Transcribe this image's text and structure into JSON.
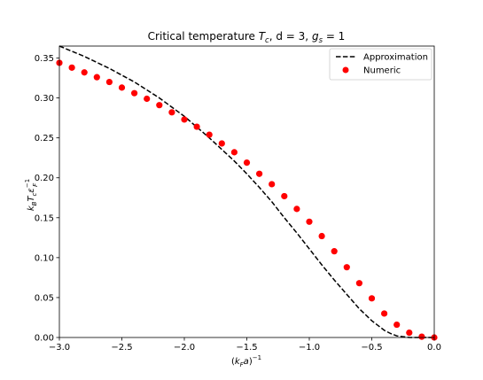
{
  "chart_data": {
    "type": "line",
    "title_main": "Critical temperature ",
    "title_var": "T",
    "title_var_sub": "c",
    "title_mid": ", d = 3, ",
    "title_var2": "g",
    "title_var2_sub": "s",
    "title_end": " = 1",
    "xlabel_open": "(",
    "xlabel_k": "k",
    "xlabel_k_sub": "F",
    "xlabel_a": "a",
    "xlabel_close": ")",
    "xlabel_exp": "−1",
    "ylabel_k": "k",
    "ylabel_k_sub": "B",
    "ylabel_T": "T",
    "ylabel_T_sub": "c",
    "ylabel_eps": "ε",
    "ylabel_eps_sub": "F",
    "ylabel_eps_exp": "−1",
    "xlim": [
      -3.0,
      0.0
    ],
    "ylim": [
      0.0,
      0.365
    ],
    "xticks": [
      -3.0,
      -2.5,
      -2.0,
      -1.5,
      -1.0,
      -0.5,
      0.0
    ],
    "xtick_labels": [
      "−3.0",
      "−2.5",
      "−2.0",
      "−1.5",
      "−1.0",
      "−0.5",
      "0.0"
    ],
    "yticks": [
      0.0,
      0.05,
      0.1,
      0.15,
      0.2,
      0.25,
      0.3,
      0.35
    ],
    "ytick_labels": [
      "0.00",
      "0.05",
      "0.10",
      "0.15",
      "0.20",
      "0.25",
      "0.30",
      "0.35"
    ],
    "legend_position": "top-right",
    "grid": false,
    "series": [
      {
        "name": "Approximation",
        "style": "dashed-line",
        "color": "#000000",
        "x": [
          -3.0,
          -2.8,
          -2.6,
          -2.4,
          -2.2,
          -2.0,
          -1.8,
          -1.6,
          -1.5,
          -1.4,
          -1.3,
          -1.2,
          -1.1,
          -1.0,
          -0.9,
          -0.8,
          -0.7,
          -0.6,
          -0.5,
          -0.4,
          -0.35,
          -0.3,
          -0.25,
          -0.2,
          -0.1,
          0.0
        ],
        "y": [
          0.365,
          0.352,
          0.337,
          0.32,
          0.3,
          0.277,
          0.25,
          0.221,
          0.205,
          0.188,
          0.17,
          0.15,
          0.131,
          0.111,
          0.091,
          0.072,
          0.054,
          0.036,
          0.021,
          0.009,
          0.005,
          0.002,
          0.001,
          0.0,
          0.0,
          0.0
        ]
      },
      {
        "name": "Numeric",
        "style": "markers",
        "color": "#ff0000",
        "x": [
          -3.0,
          -2.9,
          -2.8,
          -2.7,
          -2.6,
          -2.5,
          -2.4,
          -2.3,
          -2.2,
          -2.1,
          -2.0,
          -1.9,
          -1.8,
          -1.7,
          -1.6,
          -1.5,
          -1.4,
          -1.3,
          -1.2,
          -1.1,
          -1.0,
          -0.9,
          -0.8,
          -0.7,
          -0.6,
          -0.5,
          -0.4,
          -0.3,
          -0.2,
          -0.1,
          0.0
        ],
        "y": [
          0.344,
          0.338,
          0.332,
          0.326,
          0.32,
          0.313,
          0.306,
          0.299,
          0.291,
          0.282,
          0.273,
          0.264,
          0.254,
          0.243,
          0.232,
          0.219,
          0.205,
          0.192,
          0.177,
          0.161,
          0.145,
          0.127,
          0.108,
          0.088,
          0.068,
          0.049,
          0.03,
          0.016,
          0.006,
          0.001,
          0.0
        ]
      }
    ]
  }
}
